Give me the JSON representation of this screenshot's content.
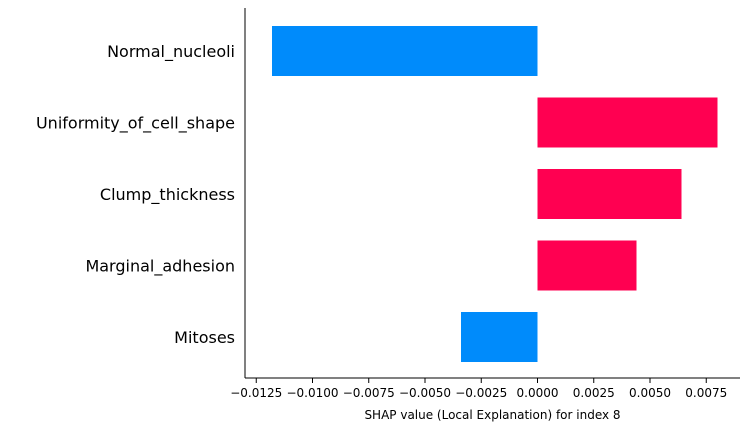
{
  "chart_data": {
    "type": "bar",
    "orientation": "horizontal",
    "categories": [
      "Normal_nucleoli",
      "Uniformity_of_cell_shape",
      "Clump_thickness",
      "Marginal_adhesion",
      "Mitoses"
    ],
    "values": [
      -0.0118,
      0.008,
      0.0064,
      0.0044,
      -0.0034
    ],
    "xlabel": "SHAP value (Local Explanation) for index 8",
    "ylabel": "",
    "title": "",
    "xlim": [
      -0.013,
      0.009
    ],
    "xticks": [
      -0.0125,
      -0.01,
      -0.0075,
      -0.005,
      -0.0025,
      0.0,
      0.0025,
      0.005,
      0.0075
    ],
    "xtick_labels": [
      "−0.0125",
      "−0.0100",
      "−0.0075",
      "−0.0050",
      "−0.0025",
      "0.0000",
      "0.0025",
      "0.0050",
      "0.0075"
    ],
    "colors": {
      "positive": "#ff0051",
      "negative": "#008bfb"
    },
    "grid": false,
    "legend": "none"
  }
}
